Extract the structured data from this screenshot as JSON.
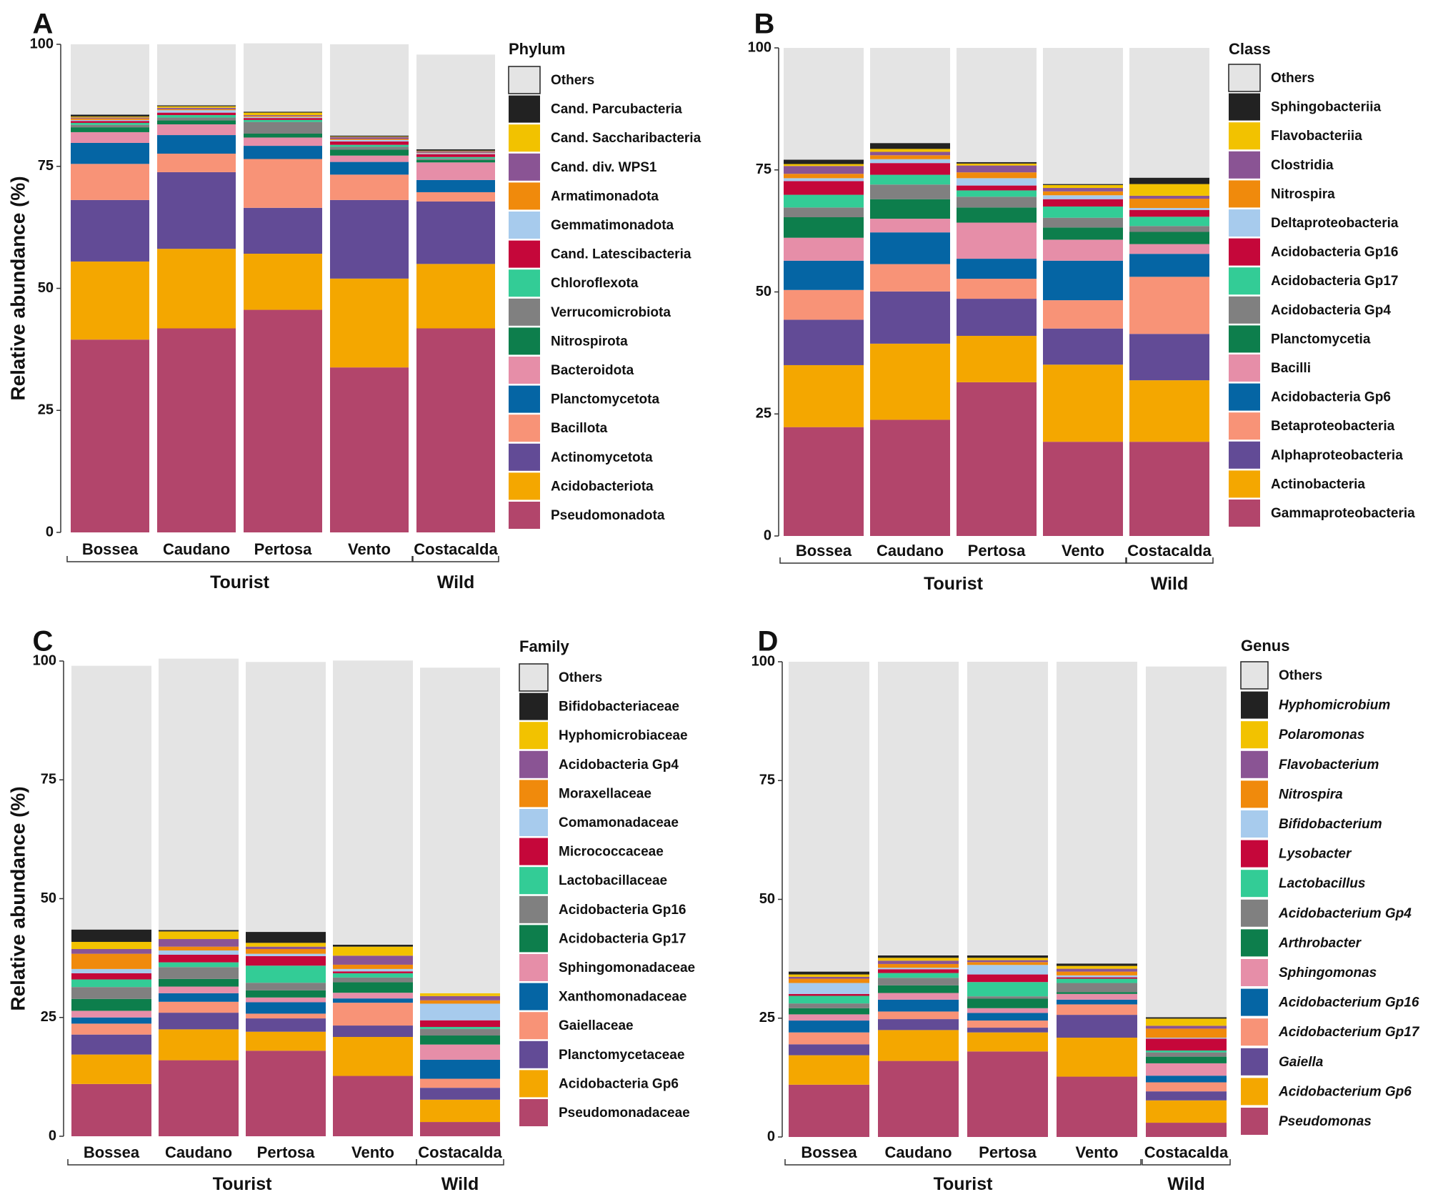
{
  "figure": {
    "colors": {
      "Others": "#e4e4e4",
      "c01": "#222222",
      "c02": "#f2c200",
      "c03": "#8a5494",
      "c04": "#f08a0c",
      "c05": "#a7cbed",
      "c06": "#c5073a",
      "c07": "#33cc96",
      "c08": "#808080",
      "c09": "#0d7e4c",
      "c10": "#e68ea8",
      "c11": "#0565a4",
      "c12": "#f89377",
      "c13": "#624b96",
      "c14": "#f4a700",
      "c15": "#b2456b"
    }
  },
  "chart_data": [
    {
      "panel": "A",
      "type": "bar",
      "stacked": true,
      "ylabel": "Relative abundance (%)",
      "ylim": [
        0,
        100
      ],
      "yticks": [
        0,
        25,
        50,
        75,
        100
      ],
      "categories": [
        "Bossea",
        "Caudano",
        "Pertosa",
        "Vento",
        "Costacalda"
      ],
      "groups": [
        {
          "label": "Tourist",
          "members": [
            "Bossea",
            "Caudano",
            "Pertosa",
            "Vento"
          ]
        },
        {
          "label": "Wild",
          "members": [
            "Costacalda"
          ]
        }
      ],
      "legend_title": "Phylum",
      "legend_italic": false,
      "series": [
        {
          "name": "Pseudomonadota",
          "color_key": "c15",
          "values": [
            39.5,
            41.8,
            45.6,
            33.8,
            41.8
          ]
        },
        {
          "name": "Acidobacteriota",
          "color_key": "c14",
          "values": [
            16.0,
            16.3,
            11.5,
            18.2,
            13.2
          ]
        },
        {
          "name": "Actinomycetota",
          "color_key": "c13",
          "values": [
            12.6,
            15.7,
            9.4,
            16.1,
            12.8
          ]
        },
        {
          "name": "Bacillota",
          "color_key": "c12",
          "values": [
            7.4,
            3.8,
            10.0,
            5.2,
            1.9
          ]
        },
        {
          "name": "Planctomycetota",
          "color_key": "c11",
          "values": [
            4.3,
            3.8,
            2.7,
            2.6,
            2.5
          ]
        },
        {
          "name": "Bacteroidota",
          "color_key": "c10",
          "values": [
            2.2,
            2.2,
            1.7,
            1.3,
            3.6
          ]
        },
        {
          "name": "Nitrospirota",
          "color_key": "c09",
          "values": [
            1.0,
            0.8,
            0.8,
            1.2,
            0.5
          ]
        },
        {
          "name": "Verrucomicrobiota",
          "color_key": "c08",
          "values": [
            0.5,
            0.6,
            2.4,
            0.6,
            0.3
          ]
        },
        {
          "name": "Chloroflexota",
          "color_key": "c07",
          "values": [
            0.4,
            0.5,
            0.4,
            0.4,
            0.3
          ]
        },
        {
          "name": "Cand. Latescibacteria",
          "color_key": "c06",
          "values": [
            0.4,
            0.5,
            0.4,
            0.7,
            0.6
          ]
        },
        {
          "name": "Gemmatimonadota",
          "color_key": "c05",
          "values": [
            0.2,
            0.5,
            0.2,
            0.3,
            0.2
          ]
        },
        {
          "name": "Armatimonadota",
          "color_key": "c04",
          "values": [
            0.3,
            0.2,
            0.2,
            0.2,
            0.1
          ]
        },
        {
          "name": "Cand. div. WPS1",
          "color_key": "c03",
          "values": [
            0.2,
            0.3,
            0.2,
            0.4,
            0.3
          ]
        },
        {
          "name": "Cand. Saccharibacteria",
          "color_key": "c02",
          "values": [
            0.2,
            0.3,
            0.5,
            0.1,
            0.1
          ]
        },
        {
          "name": "Cand. Parcubacteria",
          "color_key": "c01",
          "values": [
            0.4,
            0.2,
            0.2,
            0.2,
            0.3
          ]
        },
        {
          "name": "Others",
          "color_key": "Others",
          "values": [
            14.4,
            12.5,
            14.0,
            18.7,
            19.4
          ]
        }
      ]
    },
    {
      "panel": "B",
      "type": "bar",
      "stacked": true,
      "ylabel": "",
      "ylim": [
        0,
        100
      ],
      "yticks": [
        0,
        25,
        50,
        75,
        100
      ],
      "categories": [
        "Bossea",
        "Caudano",
        "Pertosa",
        "Vento",
        "Costacalda"
      ],
      "groups": [
        {
          "label": "Tourist",
          "members": [
            "Bossea",
            "Caudano",
            "Pertosa",
            "Vento"
          ]
        },
        {
          "label": "Wild",
          "members": [
            "Costacalda"
          ]
        }
      ],
      "legend_title": "Class",
      "legend_italic": false,
      "series": [
        {
          "name": "Gammaproteobacteria",
          "color_key": "c15",
          "values": [
            22.3,
            23.8,
            31.5,
            19.3,
            19.3
          ]
        },
        {
          "name": "Actinobacteria",
          "color_key": "c14",
          "values": [
            12.7,
            15.6,
            9.5,
            15.8,
            12.6
          ]
        },
        {
          "name": "Alphaproteobacteria",
          "color_key": "c13",
          "values": [
            9.3,
            10.7,
            7.6,
            7.4,
            9.5
          ]
        },
        {
          "name": "Betaproteobacteria",
          "color_key": "c12",
          "values": [
            6.1,
            5.6,
            4.1,
            5.8,
            11.7
          ]
        },
        {
          "name": "Acidobacteria Gp6",
          "color_key": "c11",
          "values": [
            6.0,
            6.5,
            4.1,
            8.1,
            4.7
          ]
        },
        {
          "name": "Bacilli",
          "color_key": "c10",
          "values": [
            4.7,
            2.8,
            7.4,
            4.3,
            2.0
          ]
        },
        {
          "name": "Planctomycetia",
          "color_key": "c09",
          "values": [
            4.2,
            4.0,
            3.1,
            2.5,
            2.5
          ]
        },
        {
          "name": "Acidobacteria Gp4",
          "color_key": "c08",
          "values": [
            2.0,
            3.0,
            2.2,
            2.0,
            1.2
          ]
        },
        {
          "name": "Acidobacteria Gp17",
          "color_key": "c07",
          "values": [
            2.6,
            2.0,
            1.3,
            2.3,
            1.9
          ]
        },
        {
          "name": "Acidobacteria Gp16",
          "color_key": "c06",
          "values": [
            2.8,
            2.4,
            1.0,
            1.5,
            1.4
          ]
        },
        {
          "name": "Deltaproteobacteria",
          "color_key": "c05",
          "values": [
            0.6,
            0.8,
            1.5,
            0.8,
            0.4
          ]
        },
        {
          "name": "Nitrospira",
          "color_key": "c04",
          "values": [
            0.9,
            0.8,
            1.2,
            0.8,
            1.9
          ]
        },
        {
          "name": "Clostridia",
          "color_key": "c03",
          "values": [
            1.6,
            0.7,
            1.4,
            0.7,
            0.6
          ]
        },
        {
          "name": "Flavobacteriia",
          "color_key": "c02",
          "values": [
            0.4,
            0.6,
            0.4,
            0.6,
            2.4
          ]
        },
        {
          "name": "Sphingobacteriia",
          "color_key": "c01",
          "values": [
            0.9,
            1.2,
            0.3,
            0.2,
            1.3
          ]
        },
        {
          "name": "Others",
          "color_key": "Others",
          "values": [
            22.9,
            19.5,
            23.4,
            27.9,
            26.6
          ]
        }
      ]
    },
    {
      "panel": "C",
      "type": "bar",
      "stacked": true,
      "ylabel": "Relative abundance (%)",
      "ylim": [
        0,
        100
      ],
      "yticks": [
        0,
        25,
        50,
        75,
        100
      ],
      "categories": [
        "Bossea",
        "Caudano",
        "Pertosa",
        "Vento",
        "Costacalda"
      ],
      "groups": [
        {
          "label": "Tourist",
          "members": [
            "Bossea",
            "Caudano",
            "Pertosa",
            "Vento"
          ]
        },
        {
          "label": "Wild",
          "members": [
            "Costacalda"
          ]
        }
      ],
      "legend_title": "Family",
      "legend_italic": false,
      "series": [
        {
          "name": "Pseudomonadaceae",
          "color_key": "c15",
          "values": [
            11.0,
            16.0,
            18.0,
            12.7,
            3.0
          ]
        },
        {
          "name": "Acidobacteria Gp6",
          "color_key": "c14",
          "values": [
            6.2,
            6.5,
            4.0,
            8.2,
            4.7
          ]
        },
        {
          "name": "Planctomycetaceae",
          "color_key": "c13",
          "values": [
            4.2,
            3.5,
            2.8,
            2.4,
            2.5
          ]
        },
        {
          "name": "Gaiellaceae",
          "color_key": "c12",
          "values": [
            2.3,
            2.3,
            1.0,
            4.8,
            1.9
          ]
        },
        {
          "name": "Xanthomonadaceae",
          "color_key": "c11",
          "values": [
            1.3,
            1.8,
            2.4,
            0.9,
            4.0
          ]
        },
        {
          "name": "Sphingomonadaceae",
          "color_key": "c10",
          "values": [
            1.4,
            1.4,
            1.0,
            1.2,
            3.2
          ]
        },
        {
          "name": "Acidobacteria Gp17",
          "color_key": "c09",
          "values": [
            2.5,
            1.6,
            1.5,
            2.2,
            1.9
          ]
        },
        {
          "name": "Acidobacteria Gp16",
          "color_key": "c08",
          "values": [
            2.5,
            2.5,
            1.6,
            1.0,
            1.4
          ]
        },
        {
          "name": "Lactobacillaceae",
          "color_key": "c07",
          "values": [
            1.6,
            1.0,
            3.6,
            0.9,
            0.4
          ]
        },
        {
          "name": "Micrococcaceae",
          "color_key": "c06",
          "values": [
            1.3,
            1.6,
            2.0,
            0.4,
            1.4
          ]
        },
        {
          "name": "Comamonadaceae",
          "color_key": "c05",
          "values": [
            0.9,
            0.9,
            0.5,
            0.5,
            3.5
          ]
        },
        {
          "name": "Moraxellaceae",
          "color_key": "c04",
          "values": [
            3.2,
            0.8,
            1.0,
            0.9,
            0.7
          ]
        },
        {
          "name": "Acidobacteria Gp4",
          "color_key": "c03",
          "values": [
            1.0,
            1.6,
            0.5,
            1.9,
            0.9
          ]
        },
        {
          "name": "Hyphomicrobiaceae",
          "color_key": "c02",
          "values": [
            1.5,
            1.6,
            0.8,
            1.9,
            0.6
          ]
        },
        {
          "name": "Bifidobacteriaceae",
          "color_key": "c01",
          "values": [
            2.6,
            0.3,
            2.3,
            0.4,
            0.0
          ]
        },
        {
          "name": "Others",
          "color_key": "Others",
          "values": [
            55.5,
            57.1,
            56.8,
            59.8,
            68.5
          ]
        }
      ]
    },
    {
      "panel": "D",
      "type": "bar",
      "stacked": true,
      "ylabel": "",
      "ylim": [
        0,
        100
      ],
      "yticks": [
        0,
        25,
        50,
        75,
        100
      ],
      "categories": [
        "Bossea",
        "Caudano",
        "Pertosa",
        "Vento",
        "Costacalda"
      ],
      "groups": [
        {
          "label": "Tourist",
          "members": [
            "Bossea",
            "Caudano",
            "Pertosa",
            "Vento"
          ]
        },
        {
          "label": "Wild",
          "members": [
            "Costacalda"
          ]
        }
      ],
      "legend_title": "Genus",
      "legend_italic": true,
      "series": [
        {
          "name": "Pseudomonas",
          "color_key": "c15",
          "values": [
            11.0,
            16.0,
            18.0,
            12.7,
            3.0
          ]
        },
        {
          "name": "Acidobacterium Gp6",
          "color_key": "c14",
          "values": [
            6.2,
            6.5,
            4.0,
            8.2,
            4.7
          ]
        },
        {
          "name": "Gaiella",
          "color_key": "c13",
          "values": [
            2.3,
            2.3,
            1.0,
            4.8,
            1.9
          ]
        },
        {
          "name": "Acidobacterium Gp17",
          "color_key": "c12",
          "values": [
            2.5,
            1.6,
            1.5,
            2.2,
            1.9
          ]
        },
        {
          "name": "Acidobacterium Gp16",
          "color_key": "c11",
          "values": [
            2.5,
            2.5,
            1.6,
            1.0,
            1.4
          ]
        },
        {
          "name": "Sphingomonas",
          "color_key": "c10",
          "values": [
            1.3,
            1.4,
            1.0,
            1.2,
            2.6
          ]
        },
        {
          "name": "Arthrobacter",
          "color_key": "c09",
          "values": [
            1.3,
            1.6,
            2.0,
            0.4,
            1.4
          ]
        },
        {
          "name": "Acidobacterium Gp4",
          "color_key": "c08",
          "values": [
            1.0,
            1.6,
            0.5,
            1.9,
            0.9
          ]
        },
        {
          "name": "Lactobacillus",
          "color_key": "c07",
          "values": [
            1.6,
            1.0,
            3.0,
            0.9,
            0.4
          ]
        },
        {
          "name": "Lysobacter",
          "color_key": "c06",
          "values": [
            0.4,
            0.8,
            1.6,
            0.3,
            2.5
          ]
        },
        {
          "name": "Bifidobacterium",
          "color_key": "c05",
          "values": [
            2.3,
            0.3,
            2.0,
            0.4,
            0.2
          ]
        },
        {
          "name": "Nitrospira",
          "color_key": "c04",
          "values": [
            0.9,
            0.8,
            0.6,
            0.8,
            1.9
          ]
        },
        {
          "name": "Flavobacterium",
          "color_key": "c03",
          "values": [
            0.4,
            0.7,
            0.4,
            0.6,
            0.6
          ]
        },
        {
          "name": "Polaromonas",
          "color_key": "c02",
          "values": [
            0.5,
            0.6,
            0.5,
            0.6,
            1.5
          ]
        },
        {
          "name": "Hyphomicrobium",
          "color_key": "c01",
          "values": [
            0.6,
            0.5,
            0.5,
            0.5,
            0.3
          ]
        },
        {
          "name": "Others",
          "color_key": "Others",
          "values": [
            65.2,
            61.8,
            61.8,
            63.5,
            73.8
          ]
        }
      ]
    }
  ]
}
